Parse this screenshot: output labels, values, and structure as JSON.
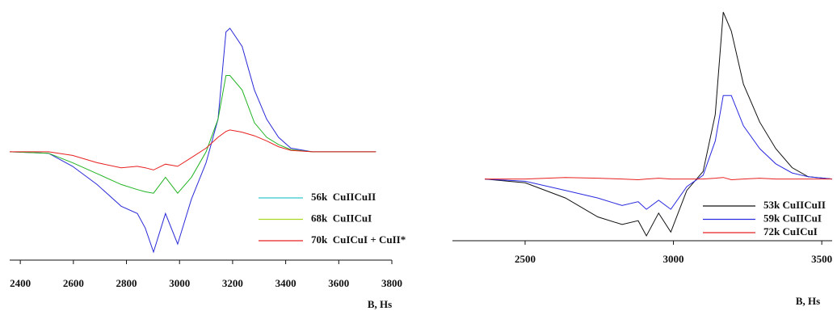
{
  "chart_data": [
    {
      "type": "line",
      "x_label": "B, Hs",
      "xlim": [
        2360,
        3800
      ],
      "xticks": [
        2400,
        2600,
        2800,
        3000,
        3200,
        3400,
        3600,
        3800
      ],
      "x": [
        2360,
        2506,
        2597,
        2689,
        2780,
        2841,
        2871,
        2902,
        2947,
        2993,
        3045,
        3100,
        3145,
        3175,
        3190,
        3236,
        3282,
        3328,
        3373,
        3419,
        3500,
        3740
      ],
      "series": [
        {
          "name": "56k  CuIICuII",
          "color": "#2a2ad8",
          "legend_color": "#33c6cc",
          "values": [
            0,
            -2,
            -20,
            -45,
            -75,
            -85,
            -105,
            -138,
            -85,
            -127,
            -65,
            -15,
            45,
            165,
            170,
            145,
            85,
            45,
            20,
            5,
            0,
            0
          ]
        },
        {
          "name": "68k  CuIICuI",
          "color": "#22b422",
          "legend_color": "#a8d820",
          "values": [
            0,
            -2,
            -15,
            -30,
            -45,
            -52,
            -55,
            -57,
            -35,
            -57,
            -35,
            0,
            45,
            105,
            105,
            85,
            40,
            20,
            10,
            3,
            0,
            0
          ]
        },
        {
          "name": "70k  CuICuI + CuII*",
          "color": "#e82020",
          "legend_color": "#e82020",
          "values": [
            0,
            0,
            -5,
            -15,
            -22,
            -20,
            -22,
            -25,
            -17,
            -20,
            -8,
            5,
            20,
            28,
            30,
            27,
            22,
            15,
            7,
            2,
            0,
            0
          ]
        }
      ]
    },
    {
      "type": "line",
      "x_label": "B, Hs",
      "xlim": [
        2255,
        3535
      ],
      "xticks": [
        2500,
        3000,
        3500
      ],
      "x": [
        2364,
        2500,
        2636,
        2745,
        2827,
        2881,
        2909,
        2950,
        2991,
        3045,
        3100,
        3141,
        3168,
        3195,
        3236,
        3291,
        3345,
        3400,
        3454,
        3535
      ],
      "series": [
        {
          "name": "53k CuIICuII",
          "color": "#111111",
          "legend_color": "#111111",
          "values": [
            0,
            -5,
            -25,
            -50,
            -60,
            -55,
            -75,
            -45,
            -70,
            -15,
            10,
            85,
            220,
            195,
            125,
            75,
            40,
            15,
            3,
            0
          ]
        },
        {
          "name": "59k CuIICuI",
          "color": "#2a2ae0",
          "legend_color": "#2a2ae0",
          "values": [
            0,
            -3,
            -15,
            -25,
            -35,
            -30,
            -40,
            -28,
            -40,
            -10,
            5,
            50,
            110,
            110,
            70,
            40,
            20,
            8,
            3,
            0
          ]
        },
        {
          "name": "72k CuICuI",
          "color": "#e82020",
          "legend_color": "#e82020",
          "values": [
            0,
            0,
            2,
            1,
            0,
            -1,
            0,
            1,
            0,
            0,
            0,
            1,
            2,
            -1,
            0,
            1,
            0,
            0,
            0,
            0
          ]
        }
      ]
    }
  ]
}
